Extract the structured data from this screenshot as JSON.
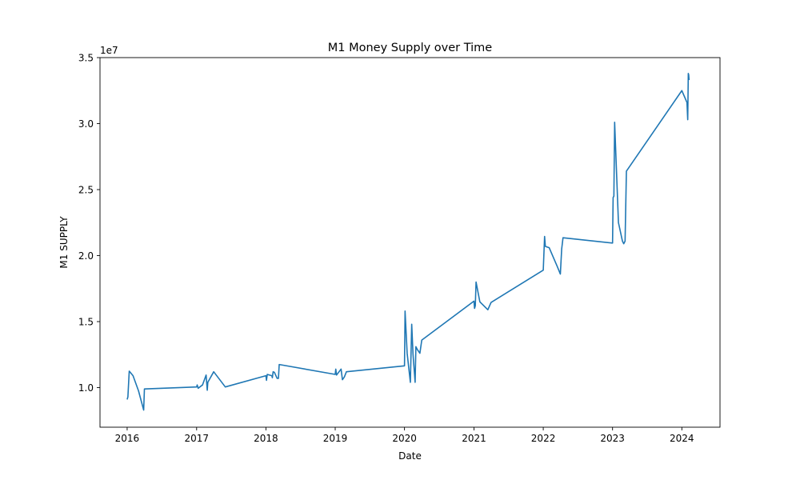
{
  "chart_data": {
    "type": "line",
    "title": "M1 Money Supply over Time",
    "xlabel": "Date",
    "ylabel": "M1 SUPPLY",
    "y_scale_label": "1e7",
    "xlim": [
      "2015-08-11",
      "2024-07-20"
    ],
    "ylim": [
      7000000,
      35000000
    ],
    "x_ticks": [
      "2016",
      "2017",
      "2018",
      "2019",
      "2020",
      "2021",
      "2022",
      "2023",
      "2024"
    ],
    "x_tick_dates": [
      "2016-01-01",
      "2017-01-01",
      "2018-01-01",
      "2019-01-01",
      "2020-01-01",
      "2021-01-01",
      "2022-01-01",
      "2023-01-01",
      "2024-01-01"
    ],
    "y_ticks": [
      "1.0",
      "1.5",
      "2.0",
      "2.5",
      "3.0",
      "3.5"
    ],
    "y_tick_values": [
      10000000,
      15000000,
      20000000,
      25000000,
      30000000,
      35000000
    ],
    "grid": false,
    "line_color": "#1f77b4",
    "series": [
      {
        "x": [
          "2016-01-01",
          "2016-01-05",
          "2016-01-12",
          "2016-02-01",
          "2016-03-01",
          "2016-03-28",
          "2016-04-01",
          "2017-01-01",
          "2017-01-04",
          "2017-01-09",
          "2017-02-01",
          "2017-02-20",
          "2017-02-26",
          "2017-03-01",
          "2017-04-01",
          "2017-06-01",
          "2018-01-01",
          "2018-01-04",
          "2018-01-08",
          "2018-02-01",
          "2018-02-04",
          "2018-02-08",
          "2018-02-15",
          "2018-03-01",
          "2018-03-08",
          "2018-03-12",
          "2019-01-01",
          "2019-01-04",
          "2019-01-08",
          "2019-02-01",
          "2019-02-08",
          "2019-02-18",
          "2019-03-01",
          "2020-01-01",
          "2020-01-04",
          "2020-01-15",
          "2020-02-01",
          "2020-02-08",
          "2020-02-15",
          "2020-02-26",
          "2020-03-01",
          "2020-03-08",
          "2020-03-22",
          "2020-04-01",
          "2021-01-01",
          "2021-01-04",
          "2021-01-08",
          "2021-01-12",
          "2021-02-01",
          "2021-02-08",
          "2021-03-15",
          "2021-04-01",
          "2022-01-01",
          "2022-01-04",
          "2022-01-08",
          "2022-01-12",
          "2022-02-01",
          "2022-03-15",
          "2022-04-01",
          "2022-04-08",
          "2022-04-15",
          "2023-01-01",
          "2023-01-04",
          "2023-01-08",
          "2023-01-12",
          "2023-02-01",
          "2023-02-22",
          "2023-03-01",
          "2023-03-08",
          "2023-03-15",
          "2024-01-01",
          "2024-01-28",
          "2024-02-01",
          "2024-02-04",
          "2024-02-06",
          "2024-02-08"
        ],
        "values": [
          9100000,
          9300000,
          11250000,
          10900000,
          9750000,
          8300000,
          9900000,
          10050000,
          10200000,
          9950000,
          10200000,
          10950000,
          9800000,
          10400000,
          11200000,
          10050000,
          10900000,
          10550000,
          11000000,
          10900000,
          10750000,
          11200000,
          11150000,
          10700000,
          10700000,
          11750000,
          11000000,
          11400000,
          10950000,
          11400000,
          10600000,
          10800000,
          11200000,
          11650000,
          15800000,
          12600000,
          10400000,
          14800000,
          12500000,
          10400000,
          13100000,
          12900000,
          12600000,
          13600000,
          16550000,
          16000000,
          16200000,
          18000000,
          16500000,
          16400000,
          15900000,
          16450000,
          18900000,
          20000000,
          21450000,
          20700000,
          20600000,
          19200000,
          18600000,
          20500000,
          21350000,
          20950000,
          24400000,
          24500000,
          30100000,
          22500000,
          21100000,
          20900000,
          21100000,
          26400000,
          32500000,
          31600000,
          30300000,
          33800000,
          33700000,
          33300000
        ]
      }
    ]
  }
}
